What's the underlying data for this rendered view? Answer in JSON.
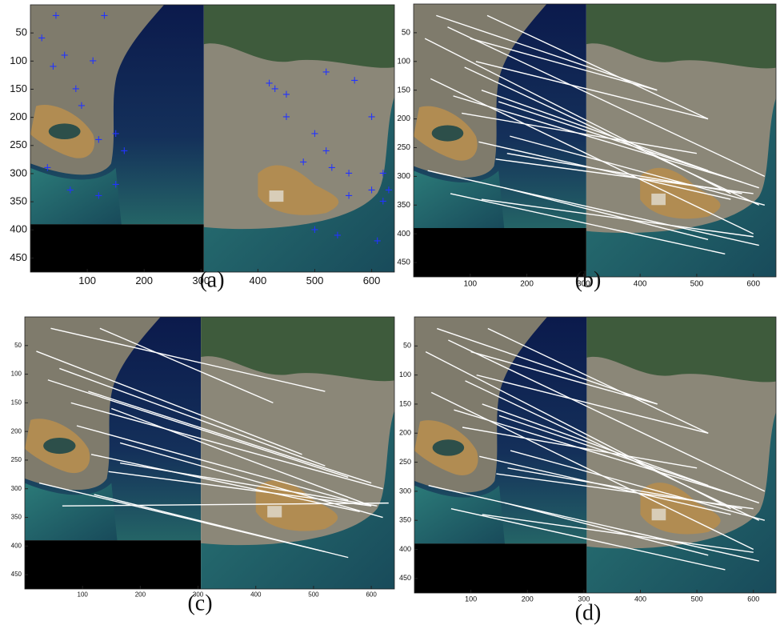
{
  "panels": [
    {
      "caption": "(a)",
      "xlim": [
        0,
        640
      ],
      "ylim": [
        0,
        475
      ],
      "xticks": [
        100,
        200,
        300,
        400,
        500,
        600
      ],
      "yticks": [
        50,
        100,
        150,
        200,
        250,
        300,
        350,
        400,
        450
      ]
    },
    {
      "caption": "(b)",
      "xlim": [
        0,
        640
      ],
      "ylim": [
        0,
        475
      ],
      "xticks": [
        100,
        200,
        300,
        400,
        500,
        600
      ],
      "yticks": [
        50,
        100,
        150,
        200,
        250,
        300,
        350,
        400,
        450
      ]
    },
    {
      "caption": "(c)",
      "xlim": [
        0,
        640
      ],
      "ylim": [
        0,
        475
      ],
      "xticks": [
        100,
        200,
        300,
        400,
        500,
        600
      ],
      "yticks": [
        50,
        100,
        150,
        200,
        250,
        300,
        350,
        400,
        450
      ]
    },
    {
      "caption": "(d)",
      "xlim": [
        0,
        640
      ],
      "ylim": [
        0,
        475
      ],
      "xticks": [
        100,
        200,
        300,
        400,
        500,
        600
      ],
      "yticks": [
        50,
        100,
        150,
        200,
        250,
        300,
        350,
        400,
        450
      ]
    }
  ]
}
